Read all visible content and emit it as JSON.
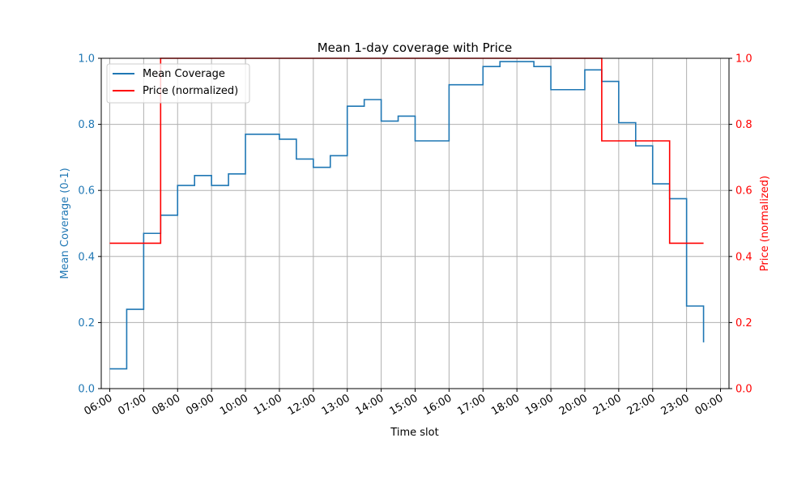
{
  "chart_data": {
    "type": "line",
    "step": "post",
    "title": "Mean 1-day coverage with Price",
    "xlabel": "Time slot",
    "ylabel": "Mean Coverage (0-1)",
    "y2label": "Price (normalized)",
    "grid": true,
    "legend_position": "top-left",
    "xlim": [
      "05:45",
      "00:15"
    ],
    "ylim": [
      0,
      1.0
    ],
    "y2lim": [
      0,
      1.0
    ],
    "x_tick_labels": [
      "06:00",
      "07:00",
      "08:00",
      "09:00",
      "10:00",
      "11:00",
      "12:00",
      "13:00",
      "14:00",
      "15:00",
      "16:00",
      "17:00",
      "18:00",
      "19:00",
      "20:00",
      "21:00",
      "22:00",
      "23:00",
      "00:00"
    ],
    "y_tick_labels": [
      "0.0",
      "0.2",
      "0.4",
      "0.6",
      "0.8",
      "1.0"
    ],
    "y2_tick_labels": [
      "0.0",
      "0.2",
      "0.4",
      "0.6",
      "0.8",
      "1.0"
    ],
    "x": [
      "06:00",
      "06:30",
      "07:00",
      "07:30",
      "08:00",
      "08:30",
      "09:00",
      "09:30",
      "10:00",
      "10:30",
      "11:00",
      "11:30",
      "12:00",
      "12:30",
      "13:00",
      "13:30",
      "14:00",
      "14:30",
      "15:00",
      "15:30",
      "16:00",
      "16:30",
      "17:00",
      "17:30",
      "18:00",
      "18:30",
      "19:00",
      "19:30",
      "20:00",
      "20:30",
      "21:00",
      "21:30",
      "22:00",
      "22:30",
      "23:00",
      "23:30"
    ],
    "series": [
      {
        "name": "Mean Coverage",
        "axis": "left",
        "color": "#1f77b4",
        "values": [
          0.06,
          0.24,
          0.47,
          0.525,
          0.615,
          0.645,
          0.615,
          0.65,
          0.77,
          0.77,
          0.755,
          0.695,
          0.67,
          0.705,
          0.855,
          0.875,
          0.81,
          0.825,
          0.75,
          0.75,
          0.92,
          0.92,
          0.975,
          0.99,
          0.99,
          0.975,
          0.905,
          0.905,
          0.965,
          0.93,
          0.805,
          0.735,
          0.62,
          0.575,
          0.25,
          0.14
        ]
      },
      {
        "name": "Price (normalized)",
        "axis": "right",
        "color": "#ff0000",
        "values": [
          0.44,
          0.44,
          0.44,
          1.0,
          1.0,
          1.0,
          1.0,
          1.0,
          1.0,
          1.0,
          1.0,
          1.0,
          1.0,
          1.0,
          1.0,
          1.0,
          1.0,
          1.0,
          1.0,
          1.0,
          1.0,
          1.0,
          1.0,
          1.0,
          1.0,
          1.0,
          1.0,
          1.0,
          1.0,
          0.75,
          0.75,
          0.75,
          0.75,
          0.44,
          0.44,
          0.44
        ]
      }
    ],
    "colors": {
      "left_axis": "#1f77b4",
      "right_axis": "#ff0000",
      "grid": "#b0b0b0"
    }
  }
}
